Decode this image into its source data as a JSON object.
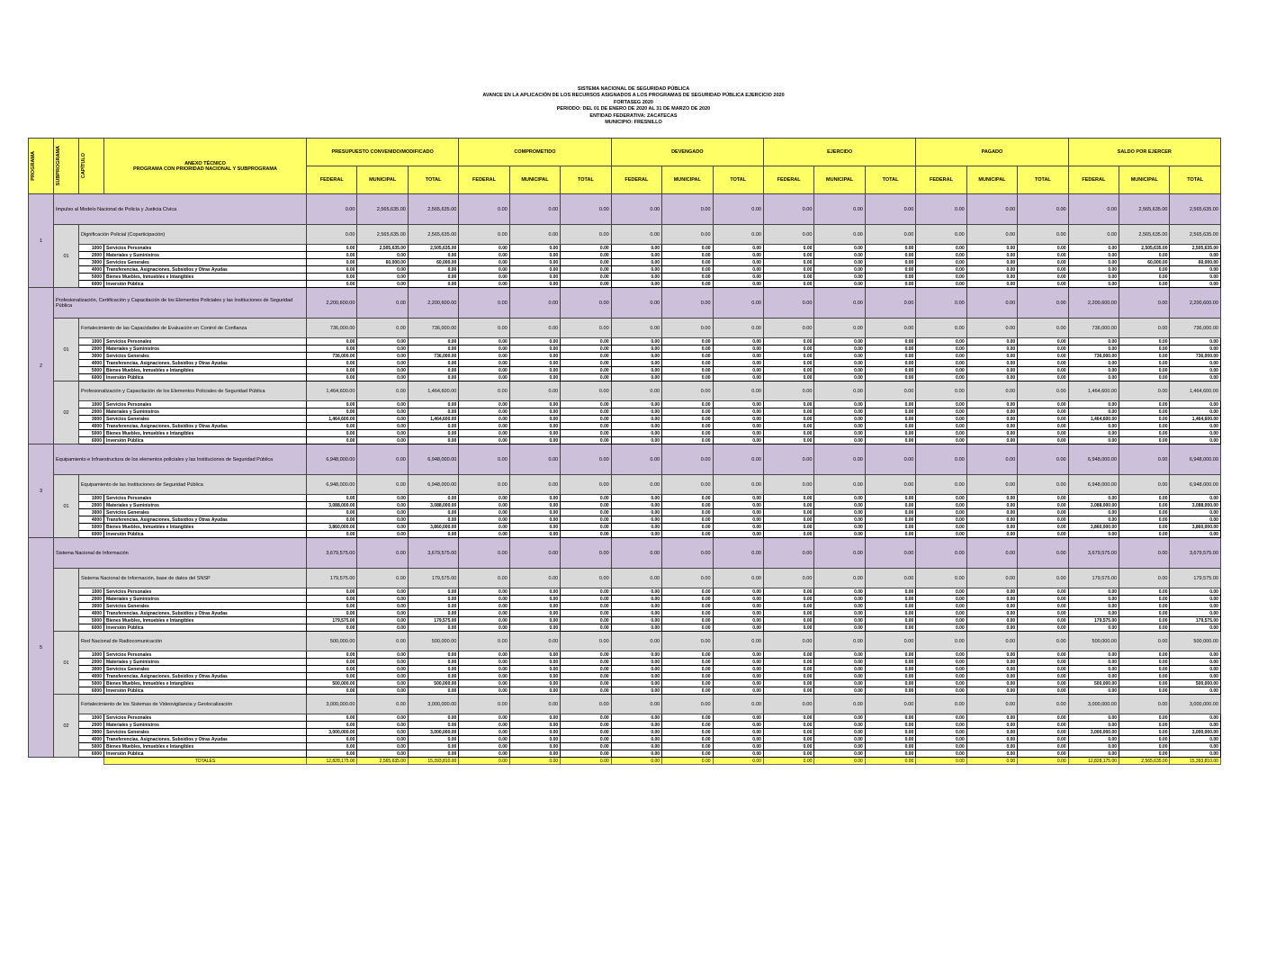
{
  "titles": [
    "SISTEMA NACIONAL DE SEGURIDAD PÚBLICA",
    "AVANCE EN LA APLICACIÓN DE LOS RECURSOS ASIGNADOS A LOS PROGRAMAS DE SEGURIDAD PÚBLICA EJERCICIO 2020",
    "FORTASEG 2020",
    "PERIODO: DEL 01 DE ENERO DE 2020 AL 31 DE MARZO DE 2020",
    "ENTIDAD FEDERATIVA: ZACATECAS",
    "MUNICIPIO: FRESNILLO"
  ],
  "header": {
    "programa": "PROGRAMA",
    "subprograma": "SUBPROGRAMA",
    "capitulo": "CAPÍTULO",
    "desc_line1": "ANEXO TÉCNICO",
    "desc_line2": "PROGRAMA CON PRIORIDAD NACIONAL Y SUBPROGRAMA",
    "groups": [
      "PRESUPUESTO CONVENIDO/MODIFICADO",
      "COMPROMETIDO",
      "DEVENGADO",
      "EJERCIDO",
      "PAGADO",
      "SALDO POR EJERCER"
    ],
    "subcols": [
      "FEDERAL",
      "MUNICIPAL",
      "TOTAL"
    ]
  },
  "zero_value": "0.00",
  "capitulos": [
    {
      "code": "1000",
      "name": "Servicios Personales"
    },
    {
      "code": "2000",
      "name": "Materiales y Suministros"
    },
    {
      "code": "3000",
      "name": "Servicios Generales"
    },
    {
      "code": "4000",
      "name": "Transferencias, Asignaciones, Subsidios y Otras Ayudas"
    },
    {
      "code": "5000",
      "name": "Bienes Muebles, Inmuebles e Intangibles"
    },
    {
      "code": "6000",
      "name": "Inversión Pública"
    }
  ],
  "programs": [
    {
      "label": "1",
      "name": "Impulso al Modelo Nacional de Policía y Justicia Cívica",
      "presupuesto": [
        "0.00",
        "2,565,635.00",
        "2,565,635.00"
      ],
      "saldo": [
        "0.00",
        "2,565,635.00",
        "2,565,635.00"
      ],
      "subprograms": [
        {
          "label": "01",
          "name": "Dignificación Policial (Coparticipación)",
          "presupuesto": [
            "0.00",
            "2,565,635.00",
            "2,565,635.00"
          ],
          "saldo": [
            "0.00",
            "2,565,635.00",
            "2,565,635.00"
          ],
          "amounts": {
            "1000": [
              "0.00",
              "2,505,635.00",
              "2,505,635.00"
            ],
            "3000": [
              "0.00",
              "60,000.00",
              "60,000.00"
            ]
          }
        }
      ]
    },
    {
      "label": "2",
      "name": "Profesionalización, Certificación y Capacitación de los Elementos Policiales y las Instituciones de Seguridad Pública",
      "presupuesto": [
        "2,200,600.00",
        "0.00",
        "2,200,600.00"
      ],
      "saldo": [
        "2,200,600.00",
        "0.00",
        "2,200,600.00"
      ],
      "subprograms": [
        {
          "label": "01",
          "name": "Fortalecimiento de las Capacidades de Evaluación en Control de Confianza",
          "presupuesto": [
            "736,000.00",
            "0.00",
            "736,000.00"
          ],
          "saldo": [
            "736,000.00",
            "0.00",
            "736,000.00"
          ],
          "amounts": {
            "3000": [
              "736,000.00",
              "0.00",
              "736,000.00"
            ]
          }
        },
        {
          "label": "02",
          "name": "Profesionalización y Capacitación de los Elementos Policiales de Seguridad Pública",
          "presupuesto": [
            "1,464,600.00",
            "0.00",
            "1,464,600.00"
          ],
          "saldo": [
            "1,464,600.00",
            "0.00",
            "1,464,600.00"
          ],
          "amounts": {
            "3000": [
              "1,464,600.00",
              "0.00",
              "1,464,600.00"
            ]
          }
        }
      ]
    },
    {
      "label": "3",
      "name": "Equipamiento e Infraestructura de los elementos policiales y las Instituciones de Seguridad Pública",
      "presupuesto": [
        "6,948,000.00",
        "0.00",
        "6,948,000.00"
      ],
      "saldo": [
        "6,948,000.00",
        "0.00",
        "6,948,000.00"
      ],
      "subprograms": [
        {
          "label": "01",
          "name": "Equipamiento de las Instituciones de Seguridad Pública",
          "presupuesto": [
            "6,948,000.00",
            "0.00",
            "6,948,000.00"
          ],
          "saldo": [
            "6,948,000.00",
            "0.00",
            "6,948,000.00"
          ],
          "amounts": {
            "2000": [
              "3,088,000.00",
              "0.00",
              "3,088,000.00"
            ],
            "5000": [
              "3,860,000.00",
              "0.00",
              "3,860,000.00"
            ]
          }
        }
      ]
    },
    {
      "label": "5",
      "name": "Sistema Nacional de Información",
      "presupuesto": [
        "3,679,575.00",
        "0.00",
        "3,679,575.00"
      ],
      "saldo": [
        "3,679,575.00",
        "0.00",
        "3,679,575.00"
      ],
      "subprograms": [
        {
          "label": "",
          "name": "Sistema Nacional de Información, base de datos del SNSP",
          "presupuesto": [
            "179,575.00",
            "0.00",
            "179,575.00"
          ],
          "saldo": [
            "179,575.00",
            "0.00",
            "179,575.00"
          ],
          "amounts": {
            "5000": [
              "179,575.00",
              "0.00",
              "179,575.00"
            ]
          }
        },
        {
          "label": "01",
          "name": "Red Nacional de Radiocomunicación",
          "presupuesto": [
            "500,000.00",
            "0.00",
            "500,000.00"
          ],
          "saldo": [
            "500,000.00",
            "0.00",
            "500,000.00"
          ],
          "amounts": {
            "5000": [
              "500,000.00",
              "0.00",
              "500,000.00"
            ]
          }
        },
        {
          "label": "02",
          "name": "Fortalecimiento de los Sistemas de Videovigilancia y Geolocalización",
          "presupuesto": [
            "3,000,000.00",
            "0.00",
            "3,000,000.00"
          ],
          "saldo": [
            "3,000,000.00",
            "0.00",
            "3,000,000.00"
          ],
          "amounts": {
            "3000": [
              "3,000,000.00",
              "0.00",
              "3,000,000.00"
            ]
          }
        }
      ]
    }
  ],
  "totals": {
    "label": "TOTALES",
    "presupuesto": [
      "12,828,175.00",
      "2,565,635.00",
      "15,393,810.00"
    ],
    "saldo": [
      "12,828,175.00",
      "2,565,635.00",
      "15,393,810.00"
    ]
  },
  "colors": {
    "header": "#ffff66",
    "program": "#ccc0da",
    "subprogram": "#d9d9d9"
  }
}
